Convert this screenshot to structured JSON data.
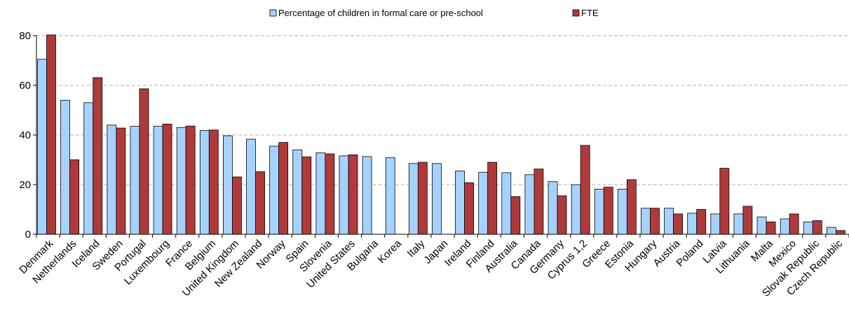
{
  "chart_data": {
    "type": "bar",
    "categories": [
      "Denmark",
      "Netherlands",
      "Iceland",
      "Sweden",
      "Portugal",
      "Luxembourg",
      "France",
      "Belgium",
      "United Kingdom",
      "New Zealand",
      "Norway",
      "Spain",
      "Slovenia",
      "United States",
      "Bulgaria",
      "Korea",
      "Italy",
      "Japan",
      "Ireland",
      "Finland",
      "Australia",
      "Canada",
      "Germany",
      "Cyprus 1,2",
      "Greece",
      "Estonia",
      "Hungary",
      "Austria",
      "Poland",
      "Latvia",
      "Lithuania",
      "Malta",
      "Mexico",
      "Slovak Republic",
      "Czech Republic"
    ],
    "series": [
      {
        "name": "Percentage of children in formal care or pre-school",
        "color": "#a6d2ff",
        "values": [
          70.5,
          54,
          53,
          44,
          43.5,
          43.5,
          43,
          41.8,
          39.7,
          38.3,
          35.5,
          34,
          32.8,
          31.6,
          31.3,
          30.9,
          28.5,
          28.5,
          25.5,
          25,
          24.8,
          24,
          21.2,
          20,
          18.2,
          18.2,
          10.5,
          10.5,
          8.5,
          8.2,
          8.2,
          7,
          6.2,
          5,
          2.8
        ]
      },
      {
        "name": "FTE",
        "color": "#b03a3a",
        "values": [
          80.3,
          30,
          63.1,
          42.8,
          58.6,
          44.4,
          43.6,
          42,
          23.1,
          25.2,
          37,
          31.2,
          32.4,
          32,
          null,
          null,
          29,
          null,
          20.8,
          29,
          15.2,
          26.3,
          15.5,
          35.8,
          19,
          22,
          10.5,
          8.2,
          10,
          26.6,
          11.3,
          5,
          8.2,
          5.5,
          1.5
        ]
      }
    ],
    "ylim": [
      0,
      80
    ],
    "yticks": [
      0,
      20,
      40,
      60,
      80
    ],
    "grid": true,
    "legend": "top-center",
    "xlabel": "",
    "ylabel": ""
  }
}
